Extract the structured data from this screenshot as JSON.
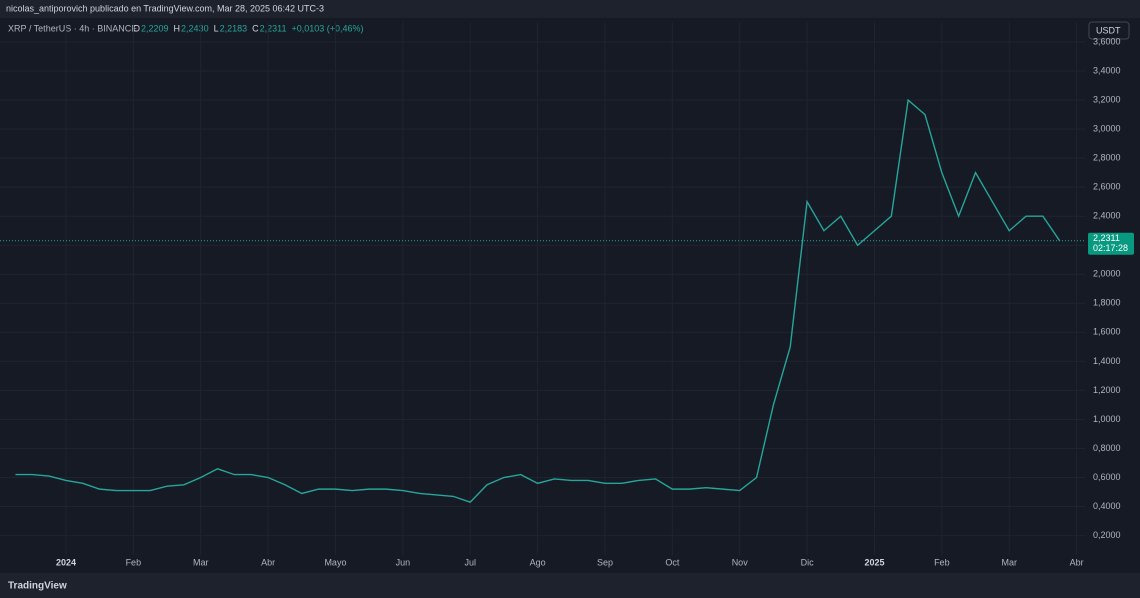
{
  "header": {
    "author_line": "nicolas_antiporovich publicado en TradingView.com, Mar 28, 2025 06:42 UTC-3"
  },
  "symbol": {
    "name": "XRP / TetherUS · 4h · BINANCE",
    "ohlc": [
      {
        "key": "O",
        "value": "2,2209"
      },
      {
        "key": "H",
        "value": "2,2430"
      },
      {
        "key": "L",
        "value": "2,2183"
      },
      {
        "key": "C",
        "value": "2,2311"
      }
    ],
    "change": "+0,0103 (+0,46%)"
  },
  "currency": "USDT",
  "brand": "TradingView",
  "price_label": {
    "value": 2.2311,
    "label": "2,2311",
    "countdown": "02:17:28"
  },
  "chart_data": {
    "type": "line",
    "categories": [
      null,
      null,
      null,
      "2024",
      null,
      null,
      null,
      "Feb",
      null,
      null,
      null,
      "Mar",
      null,
      null,
      null,
      "Abr",
      null,
      null,
      null,
      "Mayo",
      null,
      null,
      null,
      "Jun",
      null,
      null,
      null,
      "Jul",
      null,
      null,
      null,
      "Ago",
      null,
      null,
      null,
      "Sep",
      null,
      null,
      null,
      "Oct",
      null,
      null,
      null,
      "Nov",
      null,
      null,
      null,
      "Dic",
      null,
      null,
      null,
      "2025",
      null,
      null,
      null,
      "Feb",
      null,
      null,
      null,
      "Mar",
      null,
      null,
      null,
      "Abr"
    ],
    "series": [
      {
        "name": "XRP / TetherUS",
        "color": "#26a69a",
        "values": [
          0.62,
          0.62,
          0.61,
          0.58,
          0.56,
          0.52,
          0.51,
          0.51,
          0.51,
          0.54,
          0.55,
          0.6,
          0.66,
          0.62,
          0.62,
          0.6,
          0.55,
          0.49,
          0.52,
          0.52,
          0.51,
          0.52,
          0.52,
          0.51,
          0.49,
          0.48,
          0.47,
          0.43,
          0.55,
          0.6,
          0.62,
          0.56,
          0.59,
          0.58,
          0.58,
          0.56,
          0.56,
          0.58,
          0.59,
          0.52,
          0.52,
          0.53,
          0.52,
          0.51,
          0.6,
          1.1,
          1.5,
          2.5,
          2.3,
          2.4,
          2.2,
          2.3,
          2.4,
          3.2,
          3.1,
          2.7,
          2.4,
          2.7,
          2.5,
          2.3,
          2.4,
          2.4,
          2.23,
          null
        ]
      }
    ],
    "ylim": [
      0.08,
      3.6
    ],
    "yticks": [
      {
        "value": 0.2,
        "label": "0,2000"
      },
      {
        "value": 0.4,
        "label": "0,4000"
      },
      {
        "value": 0.6,
        "label": "0,6000"
      },
      {
        "value": 0.8,
        "label": "0,8000"
      },
      {
        "value": 1.0,
        "label": "1,0000"
      },
      {
        "value": 1.2,
        "label": "1,2000"
      },
      {
        "value": 1.4,
        "label": "1,4000"
      },
      {
        "value": 1.6,
        "label": "1,6000"
      },
      {
        "value": 1.8,
        "label": "1,8000"
      },
      {
        "value": 2.0,
        "label": "2,0000"
      },
      {
        "value": 2.2,
        "label": "2,2000"
      },
      {
        "value": 2.4,
        "label": "2,4000"
      },
      {
        "value": 2.6,
        "label": "2,6000"
      },
      {
        "value": 2.8,
        "label": "2,8000"
      },
      {
        "value": 3.0,
        "label": "3,0000"
      },
      {
        "value": 3.2,
        "label": "3,2000"
      },
      {
        "value": 3.4,
        "label": "3,4000"
      },
      {
        "value": 3.6,
        "label": "3,6000"
      }
    ],
    "grid": true
  }
}
